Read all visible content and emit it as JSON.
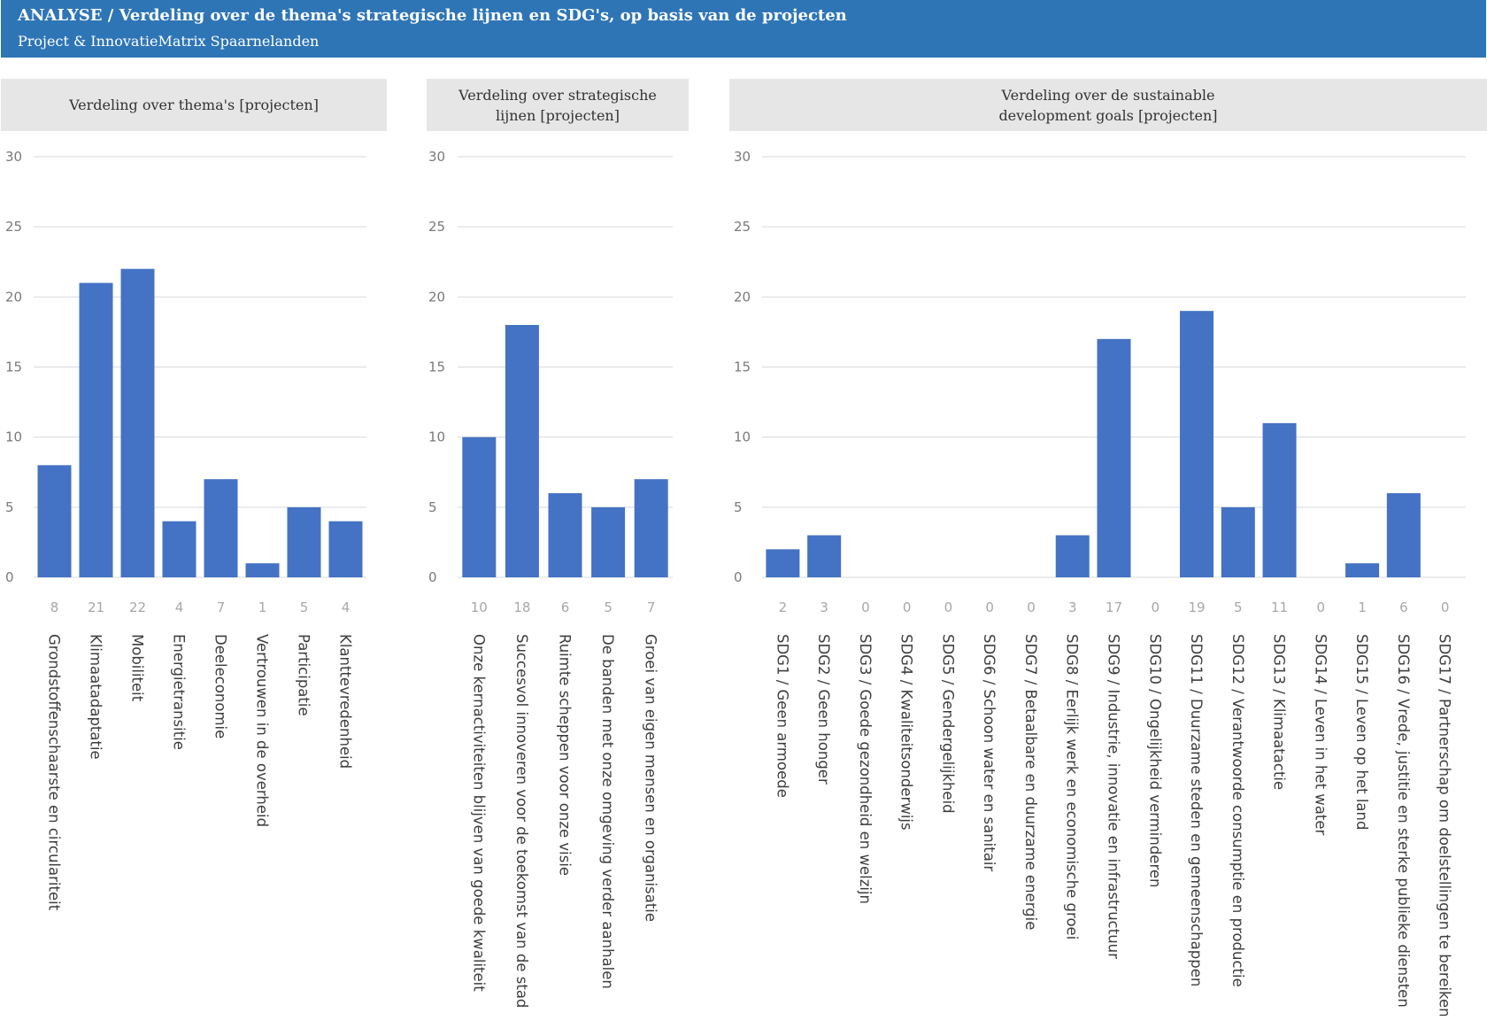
{
  "header": {
    "title": "ANALYSE / Verdeling over de thema's strategische lijnen en SDG's, op basis van de projecten",
    "subtitle": "Project & InnovatieMatrix Spaarnelanden"
  },
  "colors": {
    "banner": "#2e75b6",
    "bar": "#4472c4",
    "panel_title_bg": "#e6e6e6",
    "grid": "#d9d9d9"
  },
  "chart_data": [
    {
      "type": "bar",
      "title_lines": [
        "Verdeling over thema's [projecten]"
      ],
      "ylim": [
        0,
        30
      ],
      "yticks": [
        0,
        5,
        10,
        15,
        20,
        25,
        30
      ],
      "categories": [
        "Grondstoffenschaarste en circulariteit",
        "Klimaatadaptatie",
        "Mobiliteit",
        "Energietransitie",
        "Deeleconomie",
        "Vertrouwen in de overheid",
        "Participatie",
        "Klanttevredenheid"
      ],
      "values": [
        8,
        21,
        22,
        4,
        7,
        1,
        5,
        4
      ],
      "grid": true,
      "legend": "none"
    },
    {
      "type": "bar",
      "title_lines": [
        "Verdeling over strategische",
        "lijnen [projecten]"
      ],
      "ylim": [
        0,
        30
      ],
      "yticks": [
        0,
        5,
        10,
        15,
        20,
        25,
        30
      ],
      "categories": [
        "Onze kernactiviteiten blijven van goede kwaliteit",
        "Succesvol innoveren voor de toekomst van de stad",
        "Ruimte scheppen voor onze visie",
        "De banden met onze omgeving verder aanhalen",
        "Groei van eigen mensen en organisatie"
      ],
      "values": [
        10,
        18,
        6,
        5,
        7
      ],
      "grid": true,
      "legend": "none"
    },
    {
      "type": "bar",
      "title_lines": [
        "Verdeling over de sustainable",
        "development goals [projecten]"
      ],
      "ylim": [
        0,
        30
      ],
      "yticks": [
        0,
        5,
        10,
        15,
        20,
        25,
        30
      ],
      "categories": [
        "SDG1 / Geen armoede",
        "SDG2 / Geen honger",
        "SDG3 / Goede gezondheid en welzijn",
        "SDG4 / Kwaliteitsonderwijs",
        "SDG5 / Gendergelijkheid",
        "SDG6 / Schoon water en sanitair",
        "SDG7 / Betaalbare en duurzame energie",
        "SDG8 / Eerlijk werk en economische groei",
        "SDG9 / Industrie, innovatie en infrastructuur",
        "SDG10 / Ongelijkheid verminderen",
        "SDG11 / Duurzame steden en gemeenschappen",
        "SDG12 / Verantwoorde consumptie en productie",
        "SDG13 / Klimaatactie",
        "SDG14 / Leven in het water",
        "SDG15 / Leven op het land",
        "SDG16 / Vrede, justitie en sterke publieke diensten",
        "SDG17 / Partnerschap om doelstellingen te bereiken"
      ],
      "values": [
        2,
        3,
        0,
        0,
        0,
        0,
        0,
        3,
        17,
        0,
        19,
        5,
        11,
        0,
        1,
        6,
        0
      ],
      "grid": true,
      "legend": "none"
    }
  ]
}
